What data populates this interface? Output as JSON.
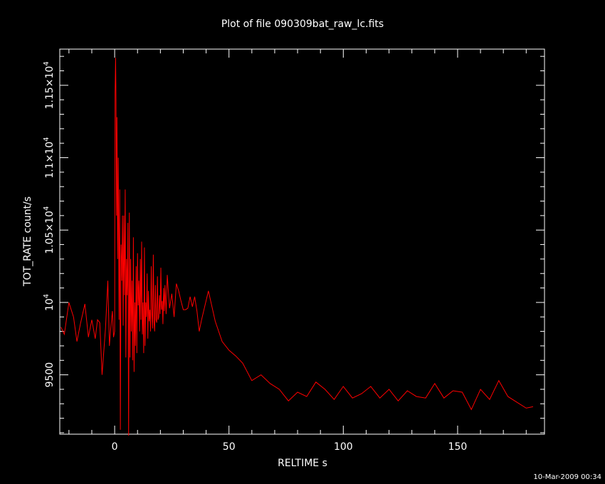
{
  "chart_data": {
    "type": "line",
    "title": "Plot of file 090309bat_raw_lc.fits",
    "xlabel": "RELTIME   s",
    "ylabel": "TOT_RATE   count/s",
    "xlim": [
      -24,
      188
    ],
    "ylim": [
      9090,
      11750
    ],
    "x_ticks": [
      {
        "value": 0,
        "label": "0"
      },
      {
        "value": 50,
        "label": "50"
      },
      {
        "value": 100,
        "label": "100"
      },
      {
        "value": 150,
        "label": "150"
      }
    ],
    "y_ticks": [
      {
        "value": 9500,
        "label": "9500",
        "mant": "",
        "exp": ""
      },
      {
        "value": 10000,
        "label": "",
        "mant": "10",
        "exp": "4"
      },
      {
        "value": 10500,
        "label": "",
        "mant": "1.05×10",
        "exp": "4"
      },
      {
        "value": 11000,
        "label": "",
        "mant": "1.1×10",
        "exp": "4"
      },
      {
        "value": 11500,
        "label": "",
        "mant": "1.15×10",
        "exp": "4"
      }
    ],
    "grid": false,
    "line_color": "#ff0000",
    "series": [
      {
        "x": [
          -23.5,
          -22,
          -20,
          -18,
          -16.5,
          -15,
          -13,
          -11.5,
          -10,
          -8.5,
          -7.5,
          -6.5,
          -5.5,
          -4,
          -3,
          -2.3,
          -1.7,
          -1,
          -0.5,
          0,
          0.2,
          0.4,
          0.6,
          0.8,
          1,
          1.3,
          1.6,
          1.9,
          2.2,
          2.5,
          2.8,
          3.1,
          3.4,
          3.7,
          4,
          4.3,
          4.6,
          4.9,
          5.2,
          5.5,
          5.8,
          6.1,
          6.4,
          6.7,
          7,
          7.3,
          7.6,
          7.9,
          8.2,
          8.5,
          8.8,
          9.1,
          9.4,
          9.7,
          10,
          10.3,
          10.6,
          10.9,
          11.2,
          11.5,
          11.8,
          12.1,
          12.4,
          12.7,
          13,
          13.3,
          13.6,
          13.9,
          14.2,
          14.5,
          14.8,
          15.1,
          15.4,
          15.7,
          16,
          16.3,
          16.6,
          16.9,
          17.2,
          17.5,
          17.8,
          18.1,
          18.4,
          18.7,
          19,
          19.3,
          19.6,
          19.9,
          20.2,
          20.5,
          20.8,
          21.1,
          21.4,
          21.7,
          22,
          22.5,
          23,
          24,
          25,
          26,
          27,
          28,
          29,
          30,
          31,
          32,
          33,
          34,
          35,
          36,
          37,
          38,
          41,
          44,
          47,
          50,
          53,
          56,
          60,
          64,
          68,
          72,
          76,
          80,
          84,
          88,
          92,
          96,
          100,
          104,
          108,
          112,
          116,
          120,
          124,
          128,
          132,
          136,
          140,
          144,
          148,
          152,
          156,
          160,
          164,
          168,
          172,
          176,
          180,
          183
        ],
        "y": [
          9830,
          9780,
          10000,
          9900,
          9730,
          9850,
          9990,
          9760,
          9880,
          9750,
          9880,
          9860,
          9500,
          9820,
          10150,
          9700,
          9820,
          9940,
          9760,
          9800,
          11450,
          11690,
          11400,
          10600,
          11280,
          10300,
          11000,
          9880,
          10780,
          9120,
          10400,
          10150,
          10600,
          9840,
          10600,
          10050,
          10780,
          9620,
          10300,
          10050,
          10550,
          9080,
          10620,
          9620,
          10300,
          9800,
          10150,
          9600,
          10450,
          9520,
          10000,
          9700,
          10250,
          9650,
          10340,
          9980,
          10150,
          9800,
          10300,
          9880,
          10420,
          9780,
          10000,
          9650,
          10380,
          9700,
          10000,
          9900,
          10200,
          9750,
          10080,
          9870,
          9950,
          9800,
          10250,
          9920,
          9820,
          10330,
          9870,
          9800,
          10120,
          9880,
          9860,
          10180,
          9880,
          9900,
          10050,
          9920,
          10240,
          9950,
          10010,
          9850,
          10100,
          9940,
          10120,
          9920,
          10190,
          9960,
          10060,
          9900,
          10130,
          10080,
          10010,
          9950,
          9950,
          9960,
          10040,
          9970,
          10040,
          9940,
          9800,
          9880,
          10080,
          9870,
          9730,
          9670,
          9630,
          9580,
          9460,
          9500,
          9440,
          9400,
          9320,
          9380,
          9350,
          9450,
          9400,
          9330,
          9420,
          9340,
          9370,
          9420,
          9340,
          9400,
          9320,
          9390,
          9350,
          9340,
          9440,
          9340,
          9390,
          9380,
          9260,
          9400,
          9330,
          9460,
          9350,
          9310,
          9270,
          9280
        ]
      }
    ]
  },
  "footer": {
    "timestamp": "10-Mar-2009 00:34"
  }
}
